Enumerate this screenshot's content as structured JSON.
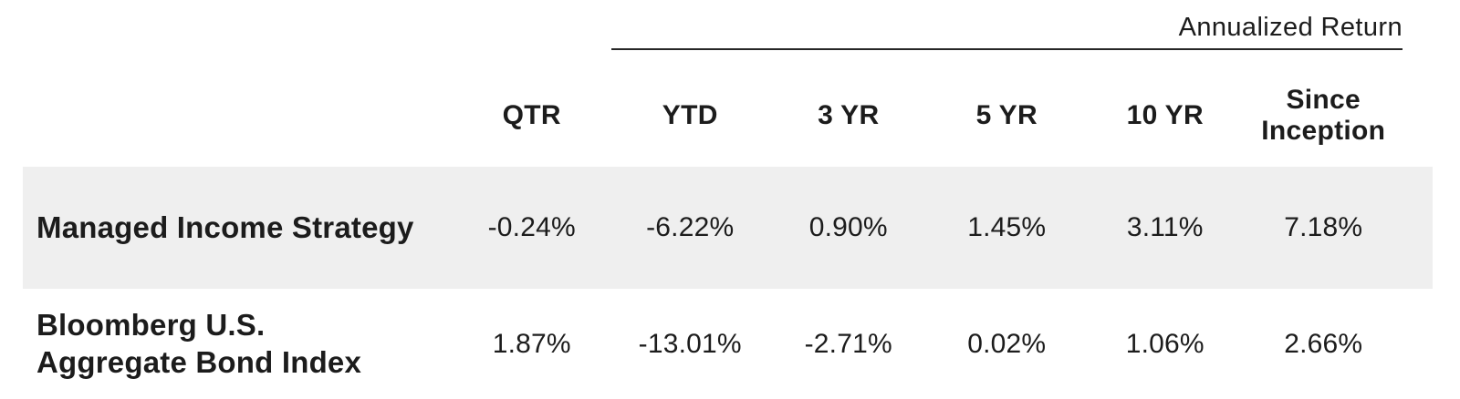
{
  "colors": {
    "highlight_bg": "#efefef",
    "text_primary": "#1c1c1c",
    "rule": "#262626",
    "background": "#ffffff"
  },
  "table": {
    "group_header": "Annualized Return",
    "columns": [
      "QTR",
      "YTD",
      "3 YR",
      "5 YR",
      "10 YR",
      "Since Inception"
    ],
    "rows": [
      {
        "label": "Managed Income Strategy",
        "values": [
          "-0.24%",
          "-6.22%",
          "0.90%",
          "1.45%",
          "3.11%",
          "7.18%"
        ]
      },
      {
        "label": "Bloomberg U.S.\nAggregate Bond Index",
        "values": [
          "1.87%",
          "-13.01%",
          "-2.71%",
          "0.02%",
          "1.06%",
          "2.66%"
        ]
      }
    ]
  }
}
